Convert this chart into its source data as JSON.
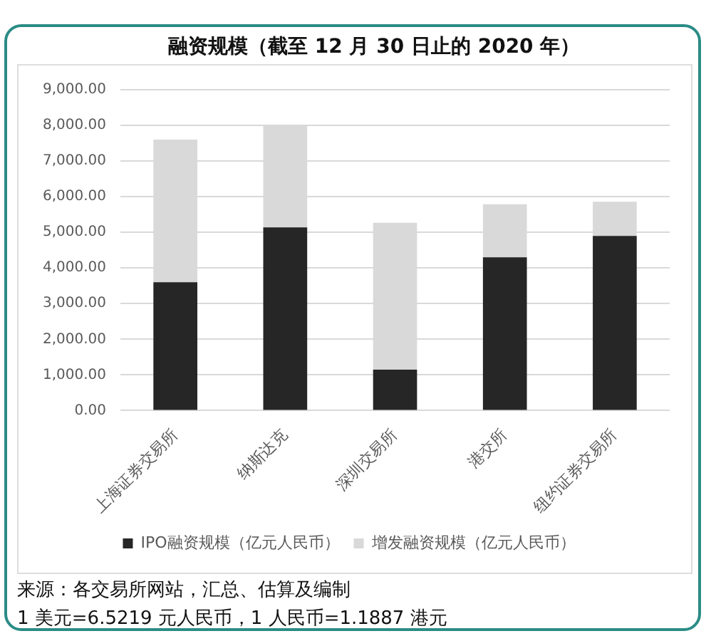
{
  "chart_data": {
    "type": "bar",
    "title": "融资规模（截至 12 月 30 日止的 2020 年）",
    "categories": [
      "上海证券交易所",
      "纳斯达克",
      "深圳交易所",
      "港交所",
      "纽约证券交易所"
    ],
    "series": [
      {
        "name": "IPO融资规模（亿元人民币）",
        "color": "#262626",
        "values": [
          3600,
          5140,
          1150,
          4300,
          4900
        ]
      },
      {
        "name": "增发融资规模（亿元人民币）",
        "color": "#d9d9d9",
        "values": [
          4000,
          2860,
          4120,
          1490,
          960
        ]
      }
    ],
    "stacked": true,
    "ylim": [
      0,
      9000
    ],
    "yticks": [
      {
        "value": 0,
        "label": "0.00"
      },
      {
        "value": 1000,
        "label": "1,000.00"
      },
      {
        "value": 2000,
        "label": "2,000.00"
      },
      {
        "value": 3000,
        "label": "3,000.00"
      },
      {
        "value": 4000,
        "label": "4,000.00"
      },
      {
        "value": 5000,
        "label": "5,000.00"
      },
      {
        "value": 6000,
        "label": "6,000.00"
      },
      {
        "value": 7000,
        "label": "7,000.00"
      },
      {
        "value": 8000,
        "label": "8,000.00"
      },
      {
        "value": 9000,
        "label": "9,000.00"
      }
    ],
    "grid": "y",
    "legend": "bottom",
    "annotations": [
      "来源：各交易所网站，汇总、估算及编制",
      "1 美元=6.5219 元人民币，1 人民币=1.1887 港元"
    ]
  }
}
